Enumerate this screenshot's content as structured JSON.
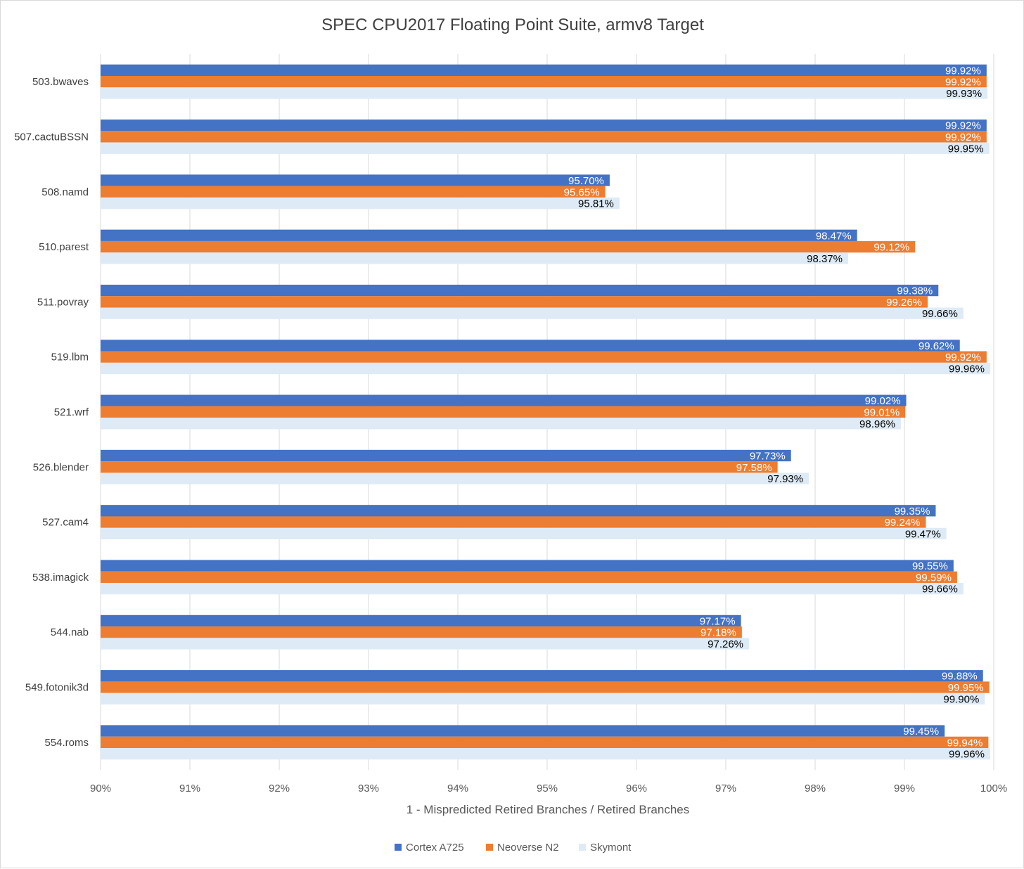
{
  "chart_data": {
    "type": "bar",
    "orientation": "horizontal",
    "title": "SPEC CPU2017 Floating Point Suite, armv8 Target",
    "xlabel": "1 - Mispredicted Retired Branches / Retired Branches",
    "ylabel": "",
    "xlim": [
      90,
      100
    ],
    "x_ticks": [
      "90%",
      "91%",
      "92%",
      "93%",
      "94%",
      "95%",
      "96%",
      "97%",
      "98%",
      "99%",
      "100%"
    ],
    "grid": "vertical",
    "legend_position": "bottom",
    "categories": [
      "503.bwaves",
      "507.cactuBSSN",
      "508.namd",
      "510.parest",
      "511.povray",
      "519.lbm",
      "521.wrf",
      "526.blender",
      "527.cam4",
      "538.imagick",
      "544.nab",
      "549.fotonik3d",
      "554.roms"
    ],
    "series": [
      {
        "name": "Cortex A725",
        "color": "#4472c4",
        "label_color": "#ffffff",
        "values": [
          99.92,
          99.92,
          95.7,
          98.47,
          99.38,
          99.62,
          99.02,
          97.73,
          99.35,
          99.55,
          97.17,
          99.88,
          99.45
        ],
        "labels": [
          "99.92%",
          "99.92%",
          "95.70%",
          "98.47%",
          "99.38%",
          "99.62%",
          "99.02%",
          "97.73%",
          "99.35%",
          "99.55%",
          "97.17%",
          "99.88%",
          "99.45%"
        ]
      },
      {
        "name": "Neoverse N2",
        "color": "#ed7d31",
        "label_color": "#ffffff",
        "values": [
          99.92,
          99.92,
          95.65,
          99.12,
          99.26,
          99.92,
          99.01,
          97.58,
          99.24,
          99.59,
          97.18,
          99.95,
          99.94
        ],
        "labels": [
          "99.92%",
          "99.92%",
          "95.65%",
          "99.12%",
          "99.26%",
          "99.92%",
          "99.01%",
          "97.58%",
          "99.24%",
          "99.59%",
          "97.18%",
          "99.95%",
          "99.94%"
        ]
      },
      {
        "name": "Skymont",
        "color": "#deebf7",
        "label_color": "#000000",
        "values": [
          99.93,
          99.95,
          95.81,
          98.37,
          99.66,
          99.96,
          98.96,
          97.93,
          99.47,
          99.66,
          97.26,
          99.9,
          99.96
        ],
        "labels": [
          "99.93%",
          "99.95%",
          "95.81%",
          "98.37%",
          "99.66%",
          "99.96%",
          "98.96%",
          "97.93%",
          "99.47%",
          "99.66%",
          "97.26%",
          "99.90%",
          "99.96%"
        ]
      }
    ]
  }
}
